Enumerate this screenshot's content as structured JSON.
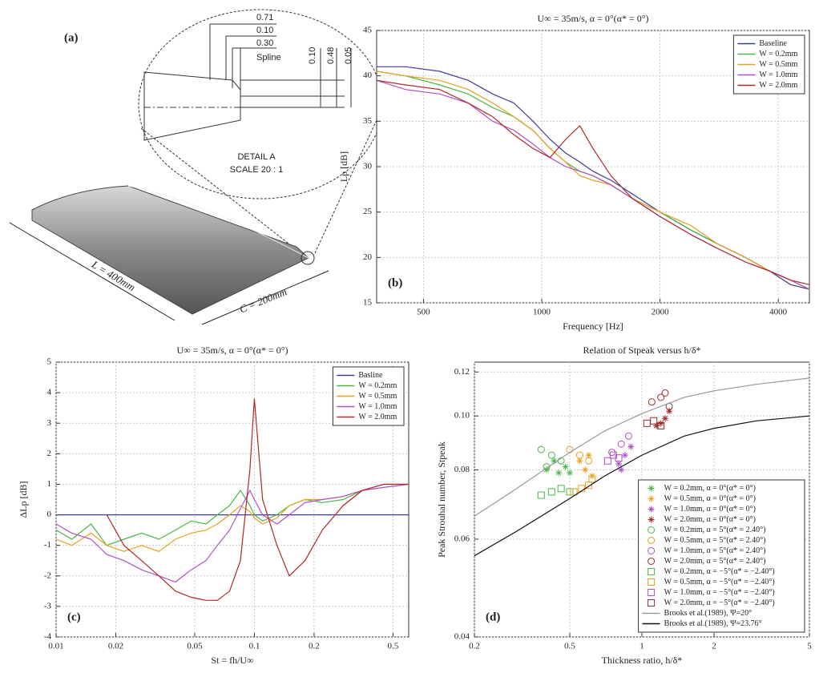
{
  "diagram": {
    "label": "(a)",
    "dimensions": [
      "0.71",
      "0.10",
      "0.30",
      "0.10",
      "0.48",
      "0.05"
    ],
    "spline": "Spline",
    "detail": "DETAIL A",
    "scale": "SCALE 20 : 1",
    "span": "L = 400mm",
    "chord": "C = 200mm"
  },
  "chart_data": [
    {
      "type": "line",
      "panel_label": "(b)",
      "title": "U∞ = 35m/s, α = 0°(α* = 0°)",
      "x_label": "Frequency [Hz]",
      "y_label": "Lp [dB]",
      "log_x": true,
      "grid": true,
      "legend": "upper right",
      "xlim": [
        380,
        4800
      ],
      "ylim": [
        15,
        45
      ],
      "xticks": [
        500,
        1000,
        2000,
        4000
      ],
      "yticks": [
        15,
        20,
        25,
        30,
        35,
        40,
        45
      ],
      "x": [
        380,
        450,
        550,
        650,
        750,
        850,
        950,
        1050,
        1150,
        1250,
        1350,
        1500,
        1700,
        2000,
        2400,
        2800,
        3300,
        3800,
        4300,
        4800
      ],
      "series": [
        {
          "name": "Baseline",
          "color": "#3c3c9a",
          "values": [
            41,
            41,
            40.5,
            39.5,
            38,
            37,
            35,
            33,
            31.5,
            30.5,
            29.5,
            28.5,
            27,
            25,
            23,
            21.5,
            20,
            18.5,
            17,
            16.5
          ]
        },
        {
          "name": "W = 0.2mm",
          "color": "#49b848",
          "values": [
            40.5,
            40,
            39,
            38,
            36.5,
            35.5,
            34,
            32,
            30.5,
            29.5,
            29,
            28,
            26.5,
            25,
            23,
            21.5,
            20,
            18.5,
            17.5,
            16.5
          ]
        },
        {
          "name": "W = 0.5mm",
          "color": "#e8a020",
          "values": [
            40.5,
            40,
            39.5,
            38.5,
            37,
            35.5,
            34,
            32,
            30.5,
            29,
            28.5,
            28,
            26.5,
            25,
            23.5,
            21.5,
            20,
            18.5,
            17.5,
            16.5
          ]
        },
        {
          "name": "W = 1.0mm",
          "color": "#b050c8",
          "values": [
            39.5,
            38.5,
            38,
            37,
            35,
            34,
            32.5,
            31,
            30,
            29.5,
            29,
            28,
            26.5,
            24.5,
            22.5,
            21,
            19.5,
            18.5,
            17.5,
            16.5
          ]
        },
        {
          "name": "W = 2.0mm",
          "color": "#b02828",
          "values": [
            39.5,
            39,
            38.5,
            37,
            35.5,
            33.5,
            32,
            31,
            33,
            34.5,
            32,
            29,
            26.5,
            24.5,
            22.5,
            21,
            19.5,
            18.5,
            17.5,
            17
          ]
        }
      ]
    },
    {
      "type": "line",
      "panel_label": "(c)",
      "title": "U∞ = 35m/s, α = 0°(α* = 0°)",
      "x_label": "St = fh/U∞",
      "y_label": "ΔLp [dB]",
      "log_x": true,
      "grid": true,
      "legend": "upper right",
      "xlim": [
        0.01,
        0.6
      ],
      "ylim": [
        -4,
        5
      ],
      "xticks": [
        0.01,
        0.02,
        0.05,
        0.1,
        0.2,
        0.5
      ],
      "yticks": [
        -4,
        -3,
        -2,
        -1,
        0,
        1,
        2,
        3,
        4,
        5
      ],
      "x": [
        0.01,
        0.012,
        0.015,
        0.018,
        0.022,
        0.027,
        0.033,
        0.04,
        0.048,
        0.057,
        0.065,
        0.075,
        0.085,
        0.095,
        0.1,
        0.11,
        0.13,
        0.15,
        0.18,
        0.22,
        0.28,
        0.35,
        0.45,
        0.6
      ],
      "series": [
        {
          "name": "Basline",
          "color": "#3c3c9a",
          "values": [
            0,
            0,
            0,
            0,
            0,
            0,
            0,
            0,
            0,
            0,
            0,
            0,
            0,
            0,
            0,
            0,
            0,
            0,
            0,
            0,
            0,
            0,
            0,
            0
          ]
        },
        {
          "name": "W = 0.2mm",
          "color": "#49b848",
          "values": [
            -0.5,
            -0.8,
            -0.3,
            -1,
            -0.8,
            -0.6,
            -0.8,
            -0.5,
            -0.2,
            -0.3,
            0,
            0.3,
            0.8,
            0.3,
            0,
            -0.2,
            0,
            0.3,
            0.5,
            0.4,
            0.5,
            0.8,
            0.9,
            1
          ]
        },
        {
          "name": "W = 0.5mm",
          "color": "#e8a020",
          "values": [
            -0.8,
            -1,
            -0.6,
            -1,
            -1.2,
            -1,
            -1.2,
            -0.8,
            -0.6,
            -0.5,
            -0.3,
            0,
            0.3,
            0.1,
            -0.1,
            -0.3,
            -0.1,
            0.3,
            0.5,
            0.5,
            0.6,
            0.8,
            0.9,
            1
          ]
        },
        {
          "name": "W = 1.0mm",
          "color": "#b050c8",
          "values": [
            -0.3,
            -0.6,
            -0.8,
            -1.3,
            -1.5,
            -1.8,
            -2,
            -2.2,
            -1.8,
            -1.5,
            -1,
            -0.5,
            0.2,
            0.8,
            0.5,
            0,
            -0.3,
            0,
            0.4,
            0.5,
            0.6,
            0.8,
            0.9,
            1
          ]
        },
        {
          "name": "W = 2.0mm",
          "color": "#b02828",
          "values": [
            null,
            null,
            null,
            0,
            -1,
            -1.5,
            -2,
            -2.5,
            -2.7,
            -2.8,
            -2.8,
            -2.5,
            -1.5,
            1.5,
            3.8,
            0.5,
            -1,
            -2,
            -1.5,
            -0.5,
            0.3,
            0.8,
            1,
            1
          ]
        }
      ]
    },
    {
      "type": "scatter",
      "panel_label": "(d)",
      "title": "Relation of Stpeak versus h/δ*",
      "x_label": "Thickness ratio, h/δ*",
      "y_label": "Peak Strouhal number, Stpeak",
      "log_x": true,
      "log_y": true,
      "grid": true,
      "legend": "lower right",
      "xlim": [
        0.2,
        5
      ],
      "ylim": [
        0.04,
        0.125
      ],
      "xticks": [
        0.2,
        0.5,
        1,
        2,
        5
      ],
      "yticks": [
        0.04,
        0.06,
        0.08,
        {
          "value": 0.1,
          "label": "0.10"
        },
        0.12
      ],
      "series": [
        {
          "name": "W = 0.2mm, α = 0°(α* = 0°)",
          "color": "#49b848",
          "marker": "star",
          "x": [
            0.4,
            0.43,
            0.45,
            0.48,
            0.5
          ],
          "values": [
            0.08,
            0.083,
            0.079,
            0.081,
            0.079
          ]
        },
        {
          "name": "W = 0.5mm, α = 0°(α* = 0°)",
          "color": "#e8a020",
          "marker": "star",
          "x": [
            0.55,
            0.6,
            0.62,
            0.58
          ],
          "values": [
            0.083,
            0.085,
            0.078,
            0.08
          ]
        },
        {
          "name": "W = 1.0mm, α = 0°(α* = 0°)",
          "color": "#b050c8",
          "marker": "star",
          "x": [
            0.8,
            0.85,
            0.9,
            0.82
          ],
          "values": [
            0.082,
            0.085,
            0.088,
            0.08
          ]
        },
        {
          "name": "W = 2.0mm, α = 0°(α* = 0°)",
          "color": "#a02a2a",
          "marker": "star",
          "x": [
            1.15,
            1.2,
            1.25,
            1.3
          ],
          "values": [
            0.096,
            0.097,
            0.099,
            0.102
          ]
        },
        {
          "name": "W = 0.2mm, α = 5°(α* = 2.40°)",
          "color": "#49b848",
          "marker": "circle",
          "x": [
            0.38,
            0.42,
            0.46,
            0.4
          ],
          "values": [
            0.087,
            0.085,
            0.083,
            0.081
          ]
        },
        {
          "name": "W = 0.5mm, α = 5°(α* = 2.40°)",
          "color": "#e8a020",
          "marker": "circle",
          "x": [
            0.5,
            0.55,
            0.6
          ],
          "values": [
            0.087,
            0.085,
            0.083
          ]
        },
        {
          "name": "W = 1.0mm, α = 5°(α* = 2.40°)",
          "color": "#b050c8",
          "marker": "circle",
          "x": [
            0.75,
            0.82,
            0.88
          ],
          "values": [
            0.086,
            0.089,
            0.092
          ]
        },
        {
          "name": "W = 2.0mm, α = 5°(α* = 2.40°)",
          "color": "#a02a2a",
          "marker": "circle",
          "x": [
            1.1,
            1.2,
            1.25,
            1.3
          ],
          "values": [
            0.106,
            0.108,
            0.11,
            0.104
          ]
        },
        {
          "name": "W = 0.2mm, α = −5°(α* = −2.40°)",
          "color": "#49b848",
          "marker": "square",
          "x": [
            0.38,
            0.42,
            0.46,
            0.5
          ],
          "values": [
            0.072,
            0.073,
            0.074,
            0.073
          ]
        },
        {
          "name": "W = 0.5mm, α = −5°(α* = −2.40°)",
          "color": "#e8a020",
          "marker": "square",
          "x": [
            0.52,
            0.56,
            0.6,
            0.62
          ],
          "values": [
            0.073,
            0.074,
            0.075,
            0.077
          ]
        },
        {
          "name": "W = 1.0mm, α = −5°(α* = −2.40°)",
          "color": "#b050c8",
          "marker": "square",
          "x": [
            0.72,
            0.76,
            0.8
          ],
          "values": [
            0.083,
            0.085,
            0.084
          ]
        },
        {
          "name": "W = 2.0mm, α = −5°(α* = −2.40°)",
          "color": "#a02a2a",
          "marker": "square",
          "x": [
            1.05,
            1.12,
            1.2
          ],
          "values": [
            0.097,
            0.098,
            0.096
          ]
        },
        {
          "name": "Brooks et al.(1989), Ψ=20°",
          "color": "#999999",
          "marker": "none",
          "x": [
            0.2,
            0.3,
            0.5,
            0.7,
            1,
            1.5,
            2,
            3,
            5
          ],
          "values": [
            0.066,
            0.074,
            0.086,
            0.094,
            0.101,
            0.108,
            0.111,
            0.114,
            0.117
          ]
        },
        {
          "name": "Brooks et al.(1989), Ψ=23.76°",
          "color": "#111111",
          "marker": "none",
          "x": [
            0.2,
            0.3,
            0.5,
            0.7,
            1,
            1.5,
            2,
            3,
            5
          ],
          "values": [
            0.056,
            0.062,
            0.071,
            0.078,
            0.085,
            0.092,
            0.095,
            0.098,
            0.1
          ]
        }
      ]
    }
  ]
}
